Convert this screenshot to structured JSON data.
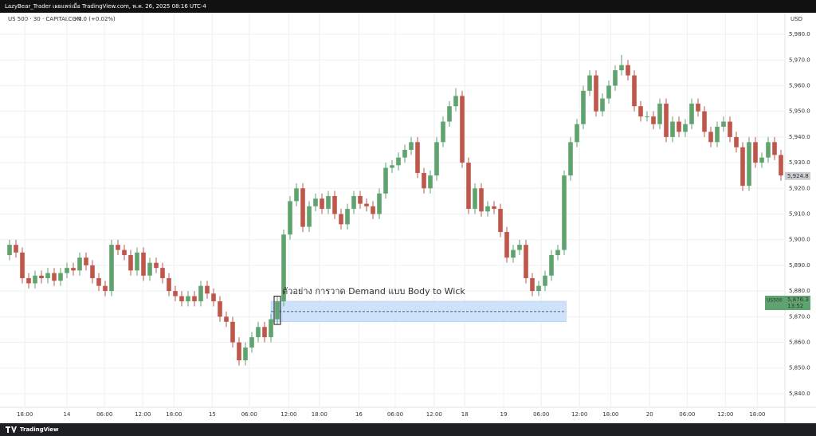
{
  "header": {
    "publisher": "LazyBear_Trader เผยแพร่เมื่อ TradingView.com, พ.ค. 26, 2025 08:16 UTC-4"
  },
  "footer": {
    "brand": "TradingView"
  },
  "chart_data": {
    "type": "candlestick",
    "symbol": "US 500 · 30 · CAPITALCOM",
    "change": "+1.0 (+0.02%)",
    "currency": "USD",
    "annotation": "ตัวอย่าง การวาด Demand แบบ Body to Wick",
    "up_color": "#5fa46e",
    "down_color": "#c2554a",
    "grid": true,
    "xlim": [
      0,
      122
    ],
    "ylim": [
      5834.7,
      5988.4
    ],
    "yticks": [
      {
        "value": 5840,
        "label": "5,840.0"
      },
      {
        "value": 5850,
        "label": "5,850.0"
      },
      {
        "value": 5860,
        "label": "5,860.0"
      },
      {
        "value": 5870,
        "label": "5,870.0"
      },
      {
        "value": 5880,
        "label": "5,880.0"
      },
      {
        "value": 5890,
        "label": "5,890.0"
      },
      {
        "value": 5900,
        "label": "5,900.0"
      },
      {
        "value": 5910,
        "label": "5,910.0"
      },
      {
        "value": 5920,
        "label": "5,920.0"
      },
      {
        "value": 5930,
        "label": "5,930.0"
      },
      {
        "value": 5940,
        "label": "5,940.0"
      },
      {
        "value": 5950,
        "label": "5,950.0"
      },
      {
        "value": 5960,
        "label": "5,960.0"
      },
      {
        "value": 5970,
        "label": "5,970.0"
      },
      {
        "value": 5980,
        "label": "5,980.0"
      }
    ],
    "xticks": [
      {
        "value": 2.9,
        "label": "18:00"
      },
      {
        "value": 9.5,
        "label": "14"
      },
      {
        "value": 15.4,
        "label": "06:00"
      },
      {
        "value": 21.4,
        "label": "12:00"
      },
      {
        "value": 26.3,
        "label": "18:00"
      },
      {
        "value": 32.3,
        "label": "15"
      },
      {
        "value": 38.1,
        "label": "06:00"
      },
      {
        "value": 44.3,
        "label": "12:00"
      },
      {
        "value": 49.1,
        "label": "18:00"
      },
      {
        "value": 55.3,
        "label": "16"
      },
      {
        "value": 61,
        "label": "06:00"
      },
      {
        "value": 67.1,
        "label": "12:00"
      },
      {
        "value": 71.9,
        "label": "18"
      },
      {
        "value": 78,
        "label": "19"
      },
      {
        "value": 83.9,
        "label": "06:00"
      },
      {
        "value": 89.9,
        "label": "12:00"
      },
      {
        "value": 94.8,
        "label": "18:00"
      },
      {
        "value": 100.9,
        "label": "20"
      },
      {
        "value": 106.8,
        "label": "06:00"
      },
      {
        "value": 112.8,
        "label": "12:00"
      },
      {
        "value": 117.8,
        "label": "18:00"
      }
    ],
    "open": [
      5894,
      5898,
      5895,
      5885,
      5883,
      5886,
      5885,
      5887,
      5884,
      5887,
      5889,
      5888,
      5893,
      5890,
      5885,
      5882,
      5880,
      5898,
      5896,
      5894,
      5888,
      5895,
      5886,
      5891,
      5889,
      5885,
      5880,
      5878,
      5876,
      5878,
      5876,
      5882,
      5879,
      5876,
      5870,
      5868,
      5860,
      5853,
      5858,
      5862,
      5866,
      5862,
      5869,
      5876,
      5902,
      5915,
      5920,
      5905,
      5913,
      5916,
      5912,
      5917,
      5910,
      5906,
      5912,
      5917,
      5914,
      5913,
      5910,
      5918,
      5928,
      5929,
      5932,
      5935,
      5938,
      5926,
      5920,
      5925,
      5938,
      5946,
      5952,
      5956,
      5930,
      5912,
      5920,
      5911,
      5913,
      5912,
      5903,
      5893,
      5896,
      5898,
      5885,
      5880,
      5882,
      5886,
      5894,
      5896,
      5925,
      5938,
      5945,
      5958,
      5964,
      5950,
      5955,
      5960,
      5966,
      5968,
      5964,
      5952,
      5948,
      5948,
      5945,
      5953,
      5940,
      5946,
      5942,
      5945,
      5953,
      5950,
      5942,
      5938,
      5944,
      5946,
      5940,
      5936,
      5921,
      5938,
      5930,
      5932,
      5938,
      5933
    ],
    "high": [
      5900,
      5900,
      5897,
      5887,
      5888,
      5888,
      5889,
      5889,
      5889,
      5891,
      5891,
      5895,
      5895,
      5892,
      5887,
      5884,
      5900,
      5900,
      5898,
      5896,
      5897,
      5897,
      5893,
      5893,
      5891,
      5887,
      5882,
      5880,
      5880,
      5880,
      5884,
      5884,
      5881,
      5878,
      5872,
      5870,
      5862,
      5860,
      5864,
      5868,
      5868,
      5871,
      5878,
      5904,
      5917,
      5922,
      5922,
      5915,
      5918,
      5918,
      5919,
      5919,
      5912,
      5914,
      5919,
      5919,
      5916,
      5915,
      5920,
      5930,
      5931,
      5934,
      5937,
      5940,
      5940,
      5928,
      5927,
      5940,
      5948,
      5954,
      5959,
      5958,
      5932,
      5922,
      5922,
      5915,
      5915,
      5914,
      5905,
      5898,
      5900,
      5900,
      5887,
      5884,
      5888,
      5896,
      5898,
      5927,
      5940,
      5947,
      5960,
      5966,
      5966,
      5957,
      5962,
      5968,
      5972,
      5970,
      5966,
      5954,
      5950,
      5950,
      5955,
      5955,
      5948,
      5948,
      5947,
      5955,
      5955,
      5952,
      5944,
      5946,
      5948,
      5948,
      5942,
      5938,
      5940,
      5940,
      5934,
      5940,
      5940,
      5935
    ],
    "low": [
      5892,
      5893,
      5883,
      5881,
      5881,
      5883,
      5883,
      5882,
      5882,
      5885,
      5886,
      5886,
      5888,
      5883,
      5880,
      5878,
      5878,
      5894,
      5892,
      5886,
      5886,
      5884,
      5884,
      5887,
      5883,
      5878,
      5876,
      5874,
      5874,
      5874,
      5874,
      5877,
      5874,
      5868,
      5866,
      5858,
      5851,
      5851,
      5856,
      5860,
      5860,
      5860,
      5867,
      5874,
      5900,
      5913,
      5903,
      5903,
      5911,
      5910,
      5910,
      5908,
      5904,
      5904,
      5910,
      5912,
      5911,
      5908,
      5908,
      5916,
      5926,
      5927,
      5930,
      5933,
      5924,
      5918,
      5918,
      5923,
      5936,
      5944,
      5950,
      5928,
      5910,
      5910,
      5909,
      5909,
      5910,
      5901,
      5891,
      5891,
      5894,
      5883,
      5878,
      5878,
      5880,
      5884,
      5892,
      5894,
      5923,
      5936,
      5943,
      5956,
      5948,
      5948,
      5953,
      5958,
      5964,
      5962,
      5950,
      5946,
      5946,
      5943,
      5943,
      5938,
      5938,
      5940,
      5940,
      5943,
      5948,
      5940,
      5936,
      5936,
      5942,
      5938,
      5934,
      5919,
      5919,
      5928,
      5928,
      5930,
      5931,
      5923
    ],
    "close": [
      5898,
      5895,
      5885,
      5883,
      5886,
      5885,
      5887,
      5884,
      5887,
      5889,
      5888,
      5893,
      5890,
      5885,
      5882,
      5880,
      5898,
      5896,
      5894,
      5888,
      5895,
      5886,
      5891,
      5889,
      5885,
      5880,
      5878,
      5876,
      5878,
      5876,
      5882,
      5879,
      5876,
      5870,
      5868,
      5860,
      5853,
      5858,
      5862,
      5866,
      5862,
      5869,
      5876,
      5902,
      5915,
      5920,
      5905,
      5913,
      5916,
      5912,
      5917,
      5910,
      5906,
      5912,
      5917,
      5914,
      5913,
      5910,
      5918,
      5928,
      5929,
      5932,
      5935,
      5938,
      5926,
      5920,
      5925,
      5938,
      5946,
      5952,
      5956,
      5930,
      5912,
      5920,
      5911,
      5913,
      5912,
      5903,
      5893,
      5896,
      5898,
      5885,
      5880,
      5882,
      5886,
      5894,
      5896,
      5925,
      5938,
      5945,
      5958,
      5964,
      5950,
      5955,
      5960,
      5966,
      5968,
      5964,
      5952,
      5948,
      5948,
      5945,
      5953,
      5940,
      5946,
      5942,
      5945,
      5953,
      5950,
      5942,
      5938,
      5944,
      5946,
      5940,
      5936,
      5921,
      5938,
      5930,
      5932,
      5938,
      5933,
      5925
    ],
    "zone": {
      "x": [
        41.5,
        87.8
      ],
      "y": [
        5868,
        5876
      ],
      "mid": 5872,
      "candle": 42
    },
    "price_labels": [
      {
        "value": 5924.8,
        "label": "5,924.8",
        "color": "#c9ccd1"
      },
      {
        "value": 5876.3,
        "label": "5,876.3",
        "symbol": "US500",
        "time": "13:52",
        "color": "#5fa46e"
      }
    ]
  }
}
